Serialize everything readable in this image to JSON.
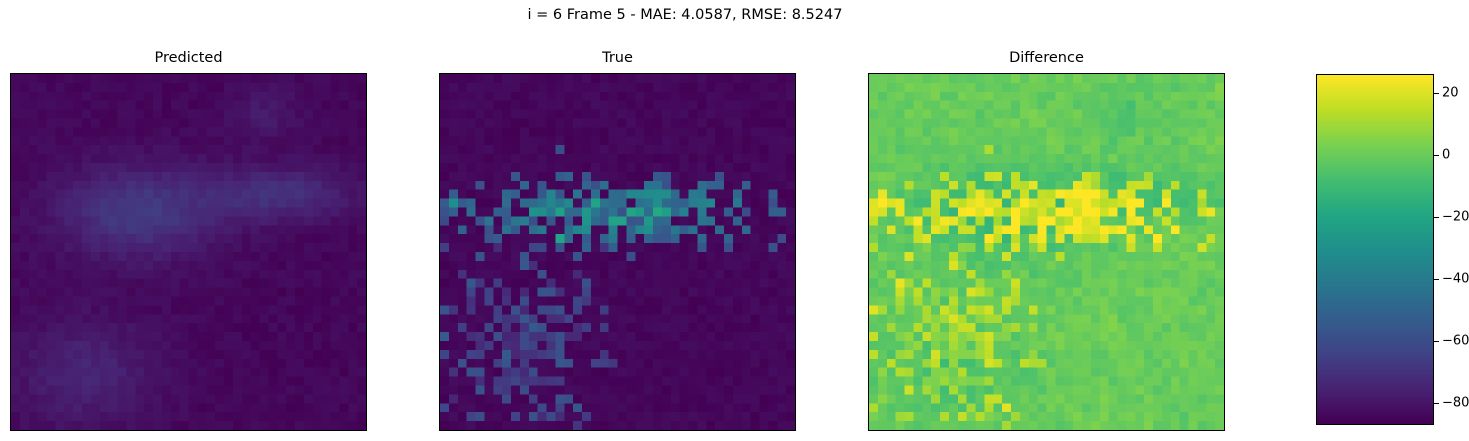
{
  "suptitle": "i = 6 Frame 5 - MAE: 4.0587, RMSE: 8.5247",
  "chart_data": {
    "type": "heatmap",
    "title": "i = 6 Frame 5 - MAE: 4.0587, RMSE: 8.5247",
    "colormap": "viridis",
    "grid_size": [
      40,
      40
    ],
    "panels": [
      {
        "title": "Predicted",
        "key": "pred"
      },
      {
        "title": "True",
        "key": "true"
      },
      {
        "title": "Difference",
        "key": "diff"
      }
    ],
    "colorbar": {
      "range": [
        -87,
        26
      ],
      "ticks": [
        20,
        0,
        -20,
        -40,
        -60,
        -80
      ],
      "tick_labels": [
        "20",
        "0",
        "−20",
        "−40",
        "−60",
        "−80"
      ]
    },
    "axes_ticks": false
  }
}
